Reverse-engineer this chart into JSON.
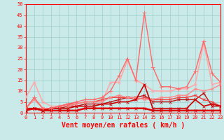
{
  "xlabel": "Vent moyen/en rafales ( km/h )",
  "background_color": "#caeaea",
  "grid_color": "#a0cccc",
  "xlim": [
    0,
    23
  ],
  "ylim": [
    0,
    50
  ],
  "yticks": [
    0,
    5,
    10,
    15,
    20,
    25,
    30,
    35,
    40,
    45,
    50
  ],
  "xticks": [
    0,
    1,
    2,
    3,
    4,
    5,
    6,
    7,
    8,
    9,
    10,
    11,
    12,
    13,
    14,
    15,
    16,
    17,
    18,
    19,
    20,
    21,
    22,
    23
  ],
  "lines": [
    {
      "x": [
        0,
        1,
        2,
        3,
        4,
        5,
        6,
        7,
        8,
        9,
        10,
        11,
        12,
        13,
        14,
        15,
        16,
        17,
        18,
        19,
        20,
        21,
        22,
        23
      ],
      "y": [
        1,
        2,
        1,
        1,
        1,
        1,
        1,
        2,
        2,
        2,
        2,
        2,
        2,
        2,
        2,
        1,
        1,
        1,
        1,
        1,
        1,
        1,
        1,
        1
      ],
      "color": "#dd0000",
      "linewidth": 1.8,
      "marker": "x",
      "markersize": 2.5,
      "zorder": 5
    },
    {
      "x": [
        0,
        1,
        2,
        3,
        4,
        5,
        6,
        7,
        8,
        9,
        10,
        11,
        12,
        13,
        14,
        15,
        16,
        17,
        18,
        19,
        20,
        21,
        22,
        23
      ],
      "y": [
        2,
        2,
        1,
        2,
        2,
        2,
        3,
        3,
        3,
        4,
        4,
        5,
        5,
        6,
        13,
        2,
        2,
        2,
        2,
        2,
        6,
        3,
        4,
        3
      ],
      "color": "#cc0000",
      "linewidth": 1.2,
      "marker": "x",
      "markersize": 2.5,
      "zorder": 5
    },
    {
      "x": [
        0,
        1,
        2,
        3,
        4,
        5,
        6,
        7,
        8,
        9,
        10,
        11,
        12,
        13,
        14,
        15,
        16,
        17,
        18,
        19,
        20,
        21,
        22,
        23
      ],
      "y": [
        1,
        2,
        1,
        2,
        2,
        3,
        3,
        4,
        4,
        4,
        5,
        6,
        7,
        7,
        8,
        5,
        5,
        5,
        6,
        6,
        6,
        9,
        3,
        3
      ],
      "color": "#bb1111",
      "linewidth": 1.0,
      "marker": "x",
      "markersize": 2.5,
      "zorder": 4
    },
    {
      "x": [
        0,
        1,
        2,
        3,
        4,
        5,
        6,
        7,
        8,
        9,
        10,
        11,
        12,
        13,
        14,
        15,
        16,
        17,
        18,
        19,
        20,
        21,
        22,
        23
      ],
      "y": [
        2,
        2,
        2,
        2,
        3,
        4,
        4,
        5,
        5,
        6,
        7,
        7,
        7,
        6,
        7,
        6,
        6,
        6,
        7,
        7,
        8,
        6,
        5,
        3
      ],
      "color": "#ee4444",
      "linewidth": 1.0,
      "marker": "x",
      "markersize": 2.5,
      "zorder": 4
    },
    {
      "x": [
        0,
        1,
        2,
        3,
        4,
        5,
        6,
        7,
        8,
        9,
        10,
        11,
        12,
        13,
        14,
        15,
        16,
        17,
        18,
        19,
        20,
        21,
        22,
        23
      ],
      "y": [
        2,
        6,
        2,
        2,
        3,
        3,
        4,
        5,
        5,
        5,
        7,
        8,
        7,
        7,
        6,
        6,
        7,
        7,
        8,
        8,
        11,
        10,
        11,
        13
      ],
      "color": "#ff8888",
      "linewidth": 1.0,
      "marker": "x",
      "markersize": 2.5,
      "zorder": 4
    },
    {
      "x": [
        0,
        1,
        2,
        3,
        4,
        5,
        6,
        7,
        8,
        9,
        10,
        11,
        12,
        13,
        14,
        15,
        16,
        17,
        18,
        19,
        20,
        21,
        22,
        23
      ],
      "y": [
        7,
        14,
        5,
        3,
        3,
        4,
        4,
        5,
        5,
        5,
        14,
        14,
        24,
        15,
        13,
        10,
        10,
        10,
        11,
        11,
        13,
        32,
        13,
        14
      ],
      "color": "#ffaaaa",
      "linewidth": 1.2,
      "marker": "x",
      "markersize": 2.5,
      "zorder": 3
    },
    {
      "x": [
        0,
        1,
        2,
        3,
        4,
        5,
        6,
        7,
        8,
        9,
        10,
        11,
        12,
        13,
        14,
        15,
        16,
        17,
        18,
        19,
        20,
        21,
        22,
        23
      ],
      "y": [
        2,
        7,
        2,
        2,
        3,
        4,
        5,
        6,
        6,
        7,
        10,
        17,
        25,
        15,
        46,
        21,
        12,
        12,
        11,
        12,
        19,
        33,
        18,
        14
      ],
      "color": "#ff6666",
      "linewidth": 1.0,
      "marker": "+",
      "markersize": 4,
      "zorder": 6
    }
  ],
  "axis_color": "#ff0000",
  "tick_color": "#ff0000",
  "label_color": "#ff0000",
  "tick_fontsize": 5,
  "xlabel_fontsize": 7
}
